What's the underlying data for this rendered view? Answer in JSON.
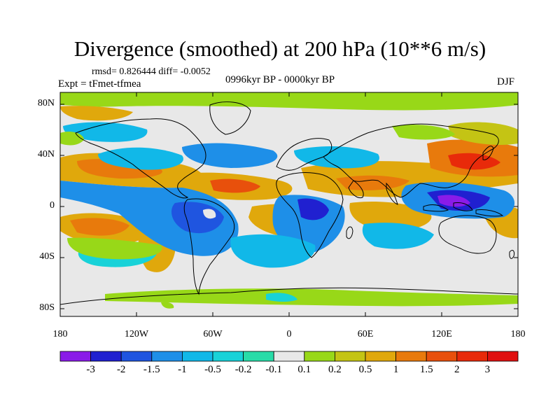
{
  "figure": {
    "title": "Divergence (smoothed) at 200 hPa (10**6 m/s)",
    "stats": "rmsd= 0.826444 diff= -0.0052",
    "experiment": "Expt = tFmet-tfmea",
    "period": "0996kyr BP - 0000kyr BP",
    "season": "DJF"
  },
  "axes": {
    "x_ticks": [
      "180",
      "120W",
      "60W",
      "0",
      "60E",
      "120E",
      "180"
    ],
    "y_ticks": [
      "80N",
      "40N",
      "0",
      "40S",
      "80S"
    ]
  },
  "colorbar": {
    "labels": [
      "-3",
      "-2",
      "-1.5",
      "-1",
      "-0.5",
      "-0.2",
      "-0.1",
      "0.1",
      "0.2",
      "0.5",
      "1",
      "1.5",
      "2",
      "3"
    ],
    "colors": [
      "#8A1BE8",
      "#2020D0",
      "#1F55E0",
      "#1E8FE8",
      "#11B8E8",
      "#18D2D8",
      "#28DCA8",
      "#E8E8E8",
      "#98D818",
      "#C4C414",
      "#E0A80C",
      "#E87A0C",
      "#E8500C",
      "#E82A0A",
      "#E01010"
    ]
  }
}
